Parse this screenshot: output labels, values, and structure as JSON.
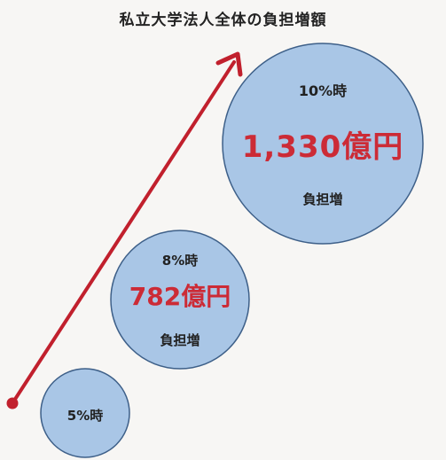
{
  "title": "私立大学法人全体の負担増額",
  "bubbles": [
    {
      "rate": "5%時"
    },
    {
      "rate": "8%時",
      "amount": "782億円",
      "burden": "負担増"
    },
    {
      "rate": "10%時",
      "amount": "1,330億円",
      "burden": "負担増"
    }
  ],
  "colors": {
    "bubble_fill": "#a9c6e6",
    "bubble_stroke": "#3d5f88",
    "arrow": "#c1202d",
    "amount_text": "#cc2b36"
  }
}
